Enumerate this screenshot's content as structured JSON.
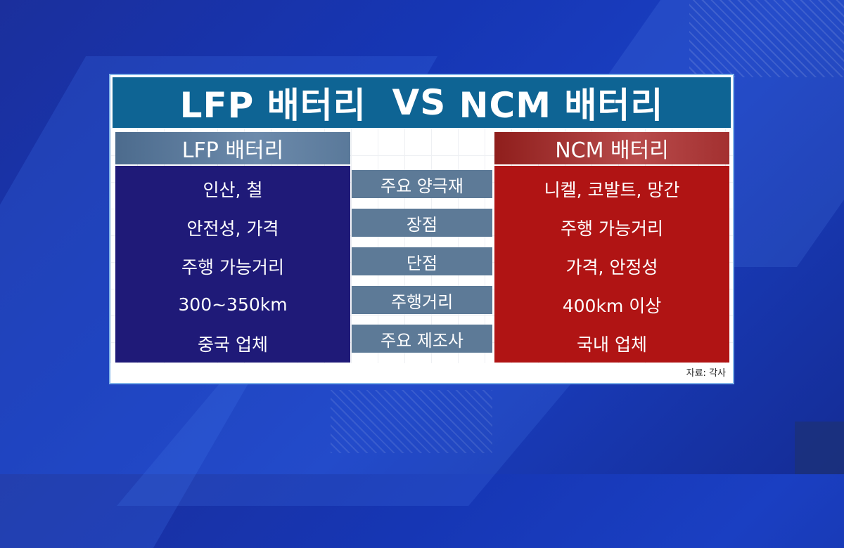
{
  "title": {
    "left": "LFP 배터리",
    "vs": "VS",
    "right": "NCM 배터리"
  },
  "lfp": {
    "header": "LFP 배터리",
    "rows": [
      "인산, 철",
      "안전성, 가격",
      "주행 가능거리",
      "300~350km",
      "중국 업체"
    ]
  },
  "categories": [
    "주요 양극재",
    "장점",
    "단점",
    "주행거리",
    "주요 제조사"
  ],
  "ncm": {
    "header": "NCM 배터리",
    "rows": [
      "니켈, 코발트, 망간",
      "주행 가능거리",
      "가격, 안정성",
      "400km 이상",
      "국내 업체"
    ]
  },
  "source": "자료: 각사",
  "colors": {
    "title_bg": "#0e6494",
    "lfp_body": "#1f1a78",
    "ncm_body": "#b01414",
    "category_bg": "#5d7a97"
  }
}
